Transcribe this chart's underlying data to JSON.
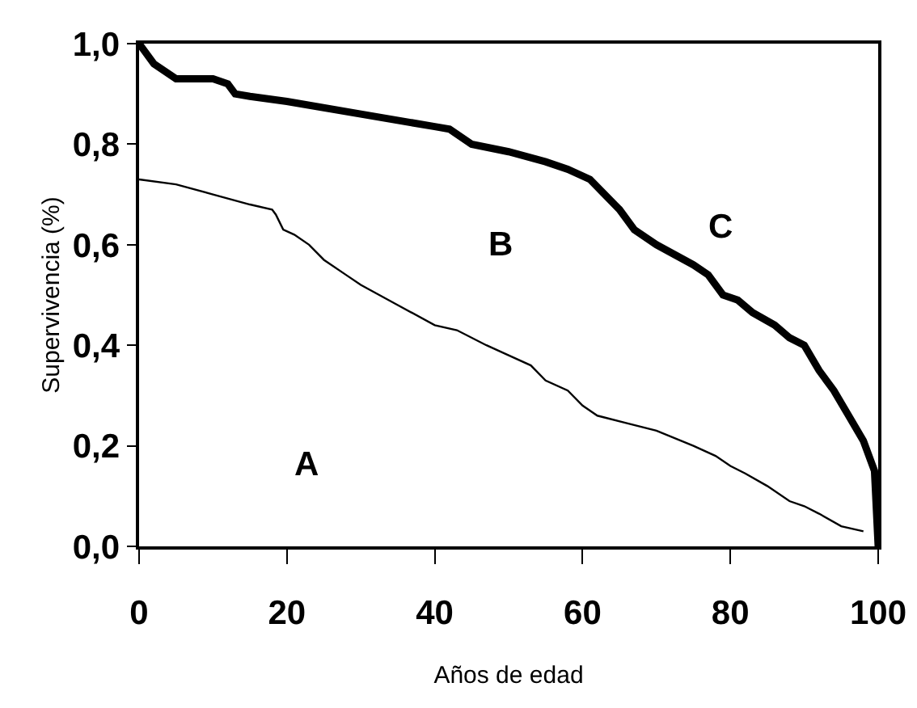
{
  "chart_data": {
    "type": "line",
    "xlabel": "Años de edad",
    "ylabel": "Supervivencia (%)",
    "xlim": [
      0,
      100
    ],
    "xticks": [
      0,
      20,
      40,
      60,
      80,
      100
    ],
    "ylim": [
      0,
      1
    ],
    "yticks": [
      {
        "value": 0,
        "label": "0,0"
      },
      {
        "value": 0.2,
        "label": "0,2"
      },
      {
        "value": 0.4,
        "label": "0,4"
      },
      {
        "value": 0.6,
        "label": "0,6"
      },
      {
        "value": 0.8,
        "label": "0,8"
      },
      {
        "value": 1,
        "label": "1,0"
      }
    ],
    "grid": false,
    "marker": "none",
    "line_style": "solid",
    "series": [
      {
        "color": "#000000",
        "x": [
          0,
          5,
          10,
          15,
          18,
          18.5,
          19.5,
          21,
          23,
          25,
          28,
          30,
          35,
          40,
          43,
          47,
          50,
          53,
          55,
          58,
          60,
          62,
          66,
          70,
          75,
          78,
          80,
          82,
          85,
          88,
          90,
          92,
          95,
          98
        ],
        "values": [
          0.73,
          0.72,
          0.7,
          0.68,
          0.67,
          0.66,
          0.63,
          0.62,
          0.6,
          0.57,
          0.54,
          0.52,
          0.48,
          0.44,
          0.43,
          0.4,
          0.38,
          0.36,
          0.33,
          0.31,
          0.28,
          0.26,
          0.245,
          0.23,
          0.2,
          0.18,
          0.16,
          0.145,
          0.12,
          0.09,
          0.08,
          0.065,
          0.04,
          0.03
        ]
      },
      {
        "color": "#000000",
        "x": [
          0,
          2,
          5,
          10,
          12,
          13,
          15,
          20,
          30,
          40,
          42,
          45,
          50,
          55,
          58,
          61,
          63,
          65,
          67,
          70,
          75,
          77,
          79,
          81,
          83,
          86,
          88,
          90,
          92,
          94,
          96,
          98,
          99.5,
          100
        ],
        "values": [
          1.0,
          0.96,
          0.93,
          0.93,
          0.92,
          0.9,
          0.895,
          0.885,
          0.86,
          0.835,
          0.83,
          0.8,
          0.785,
          0.765,
          0.75,
          0.73,
          0.7,
          0.67,
          0.63,
          0.6,
          0.56,
          0.54,
          0.5,
          0.49,
          0.465,
          0.44,
          0.415,
          0.4,
          0.35,
          0.31,
          0.26,
          0.21,
          0.15,
          0.0
        ]
      }
    ],
    "annotations": [
      "A",
      "B",
      "C"
    ]
  }
}
